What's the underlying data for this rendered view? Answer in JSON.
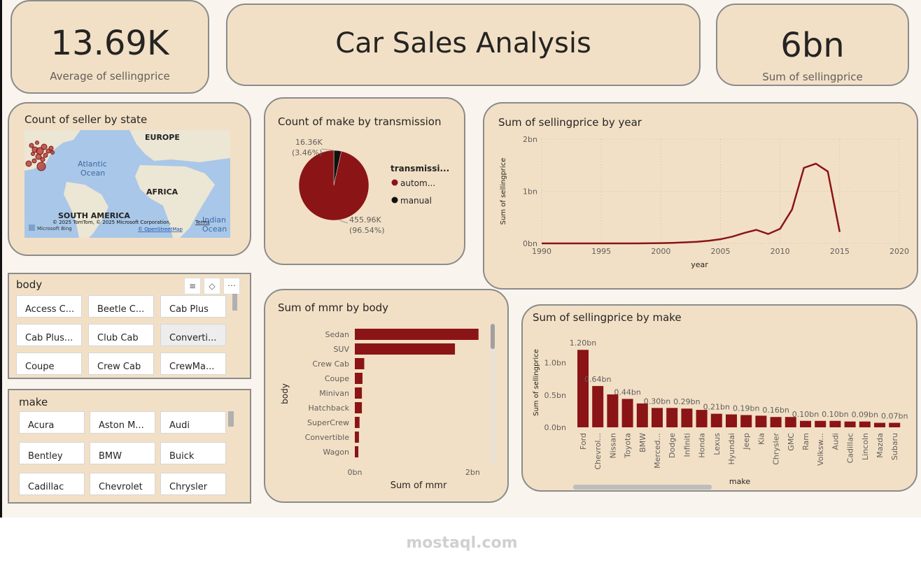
{
  "kpi_avg": {
    "value": "13.69K",
    "label": "Average of sellingprice"
  },
  "header": {
    "title": "Car Sales Analysis"
  },
  "kpi_sum": {
    "value": "6bn",
    "label": "Sum of sellingprice"
  },
  "map": {
    "title": "Count of seller by state",
    "labels": {
      "europe": "EUROPE",
      "atlantic1": "Atlantic",
      "atlantic2": "Ocean",
      "africa": "AFRICA",
      "south_america": "SOUTH AMERICA",
      "indian1": "Indian",
      "indian2": "Ocean"
    },
    "attribution": "© 2025 TomTom, © 2025 Microsoft Corporation,",
    "terms": "Terms",
    "osm": "© OpenStreetMap",
    "bing": "Microsoft Bing"
  },
  "slicer_body": {
    "title": "body",
    "items": [
      "Access C...",
      "Beetle C...",
      "Cab Plus",
      "Cab Plus...",
      "Club Cab",
      "Converti...",
      "Coupe",
      "Crew Cab",
      "CrewMa..."
    ]
  },
  "slicer_make": {
    "title": "make",
    "items": [
      "Acura",
      "Aston M...",
      "Audi",
      "Bentley",
      "BMW",
      "Buick",
      "Cadillac",
      "Chevrolet",
      "Chrysler"
    ]
  },
  "chart_data": [
    {
      "type": "pie",
      "title": "Count of make by transmission",
      "legend_title": "transmissi...",
      "legend_position": "right",
      "slices": [
        {
          "name": "autom...",
          "value": 455.96,
          "unit": "K",
          "label": "455.96K",
          "pct": "(96.54%)",
          "color": "#8b1416"
        },
        {
          "name": "manual",
          "value": 16.36,
          "unit": "K",
          "label": "16.36K",
          "pct": "(3.46%)",
          "color": "#111111"
        }
      ]
    },
    {
      "type": "line",
      "title": "Sum of sellingprice by year",
      "xlabel": "year",
      "ylabel": "Sum of sellingprice",
      "xlim": [
        1990,
        2020
      ],
      "xticks": [
        "1990",
        "1995",
        "2000",
        "2005",
        "2010",
        "2015",
        "2020"
      ],
      "ylim": [
        0,
        2
      ],
      "yticks": [
        "0bn",
        "1bn",
        "2bn"
      ],
      "grid": true,
      "x": [
        1990,
        1992,
        1994,
        1996,
        1998,
        2000,
        2001,
        2002,
        2003,
        2004,
        2005,
        2006,
        2007,
        2008,
        2009,
        2010,
        2011,
        2012,
        2013,
        2014,
        2015
      ],
      "values": [
        0.0,
        0.0,
        0.0,
        0.0,
        0.0,
        0.005,
        0.01,
        0.02,
        0.03,
        0.05,
        0.08,
        0.13,
        0.2,
        0.26,
        0.18,
        0.28,
        0.65,
        1.45,
        1.53,
        1.38,
        0.22
      ],
      "color": "#8b1416"
    },
    {
      "type": "bar",
      "orientation": "horizontal",
      "title": "Sum of mmr by body",
      "xlabel": "Sum of mmr",
      "ylabel": "body",
      "xticks": [
        "0bn",
        "2bn"
      ],
      "xlim": [
        0,
        2.4
      ],
      "categories": [
        "Sedan",
        "SUV",
        "Crew Cab",
        "Coupe",
        "Minivan",
        "Hatchback",
        "SuperCrew",
        "Convertible",
        "Wagon"
      ],
      "values": [
        2.1,
        1.7,
        0.16,
        0.13,
        0.12,
        0.12,
        0.08,
        0.07,
        0.06
      ],
      "color": "#8b1416"
    },
    {
      "type": "bar",
      "title": "Sum of sellingprice by make",
      "xlabel": "make",
      "ylabel": "Sum of sellingprice",
      "yticks": [
        "0.0bn",
        "0.5bn",
        "1.0bn"
      ],
      "ylim": [
        0,
        1.3
      ],
      "categories": [
        "Ford",
        "Chevrol...",
        "Nissan",
        "Toyota",
        "BMW",
        "Merced...",
        "Dodge",
        "Infiniti",
        "Honda",
        "Lexus",
        "Hyundai",
        "Jeep",
        "Kia",
        "Chrysler",
        "GMC",
        "Ram",
        "Volksw...",
        "Audi",
        "Cadillac",
        "Lincoln",
        "Mazda",
        "Subaru"
      ],
      "values": [
        1.2,
        0.64,
        0.51,
        0.44,
        0.37,
        0.3,
        0.3,
        0.29,
        0.27,
        0.21,
        0.2,
        0.19,
        0.18,
        0.16,
        0.16,
        0.1,
        0.1,
        0.1,
        0.09,
        0.09,
        0.07,
        0.07
      ],
      "data_labels": [
        "1.20bn",
        "0.64bn",
        "",
        "0.44bn",
        "",
        "0.30bn",
        "",
        "0.29bn",
        "",
        "0.21bn",
        "",
        "0.19bn",
        "",
        "0.16bn",
        "",
        "0.10bn",
        "",
        "0.10bn",
        "",
        "0.09bn",
        "",
        "0.07bn"
      ],
      "color": "#8b1416"
    }
  ],
  "watermark": {
    "text": "mostaql.com"
  }
}
